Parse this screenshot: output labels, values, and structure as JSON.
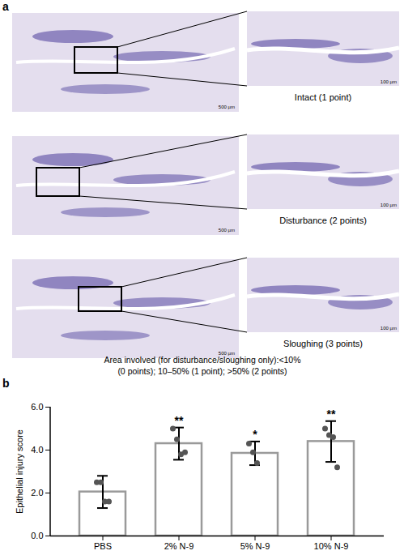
{
  "panel_a": {
    "label": "a",
    "rows": [
      {
        "scale_main": "500 µm",
        "scale_zoom": "100 µm",
        "caption": "Intact (1 point)"
      },
      {
        "scale_main": "500 µm",
        "scale_zoom": "100 µm",
        "caption": "Disturbance (2 points)"
      },
      {
        "scale_main": "500 µm",
        "scale_zoom": "100 µm",
        "caption": "Sloughing (3 points)"
      }
    ],
    "note": [
      "Area involved (for disturbance/sloughing only):<10%",
      "(0 points); 10–50% (1 point); >50% (2 points)"
    ]
  },
  "panel_b": {
    "label": "b"
  },
  "chart_data": {
    "type": "bar",
    "y_label": "Epithelial injury score",
    "categories": [
      "PBS",
      "2% N-9",
      "5% N-9",
      "10% N-9"
    ],
    "values": [
      2.05,
      4.3,
      3.85,
      4.4
    ],
    "errors": [
      0.75,
      0.75,
      0.55,
      0.95
    ],
    "points": [
      [
        2.5,
        2.5,
        1.6,
        1.6
      ],
      [
        5.0,
        4.5,
        3.8,
        3.9
      ],
      [
        4.3,
        3.9,
        3.4
      ],
      [
        5.0,
        4.7,
        4.6,
        3.2
      ]
    ],
    "significance": [
      null,
      "**",
      "*",
      "**"
    ],
    "color": "#9a9a9a",
    "ylim": [
      0,
      6
    ],
    "yticks": [
      0,
      2,
      4,
      6
    ],
    "grid": false
  }
}
